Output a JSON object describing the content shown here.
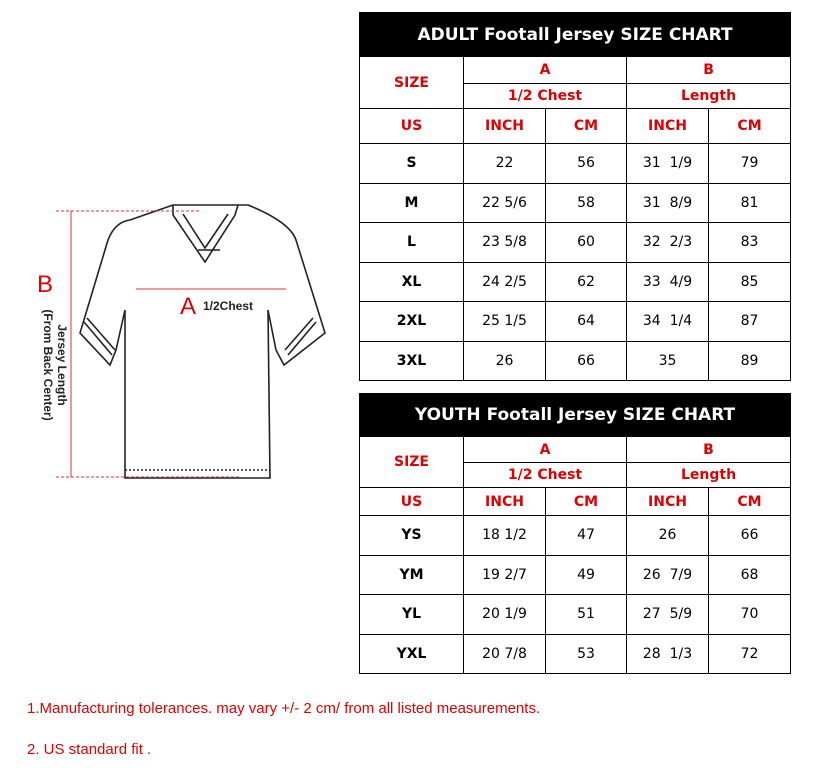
{
  "adult": {
    "title": "ADULT Footall Jersey SIZE CHART",
    "size_label": "SIZE",
    "col_a": "A",
    "col_b": "B",
    "col_a_sub": "1/2 Chest",
    "col_b_sub": "Length",
    "units": [
      "US",
      "INCH",
      "CM",
      "INCH",
      "CM"
    ],
    "rows": [
      [
        "S",
        "22",
        "56",
        "31  1/9",
        "79"
      ],
      [
        "M",
        "22 5/6",
        "58",
        "31  8/9",
        "81"
      ],
      [
        "L",
        "23 5/8",
        "60",
        "32  2/3",
        "83"
      ],
      [
        "XL",
        "24 2/5",
        "62",
        "33  4/9",
        "85"
      ],
      [
        "2XL",
        "25 1/5",
        "64",
        "34  1/4",
        "87"
      ],
      [
        "3XL",
        "26",
        "66",
        "35",
        "89"
      ]
    ]
  },
  "youth": {
    "title": "YOUTH Footall Jersey SIZE CHART",
    "size_label": "SIZE",
    "col_a": "A",
    "col_b": "B",
    "col_a_sub": "1/2 Chest",
    "col_b_sub": "Length",
    "units": [
      "US",
      "INCH",
      "CM",
      "INCH",
      "CM"
    ],
    "rows": [
      [
        "YS",
        "18 1/2",
        "47",
        "26",
        "66"
      ],
      [
        "YM",
        "19 2/7",
        "49",
        "26  7/9",
        "68"
      ],
      [
        "YL",
        "20 1/9",
        "51",
        "27  5/9",
        "70"
      ],
      [
        "YXL",
        "20 7/8",
        "53",
        "28  1/3",
        "72"
      ]
    ]
  },
  "diagram": {
    "label_a": "A",
    "label_a_text": "1/2Chest",
    "label_b": "B",
    "length_line1": "Jersey Length",
    "length_line2": "(From Back Center)"
  },
  "notes": [
    "1.Manufacturing tolerances. may vary +/- 2 cm/ from all listed measurements.",
    "2. US standard fit ."
  ],
  "colors": {
    "accent": "#e00000",
    "header_bg": "#000000"
  }
}
